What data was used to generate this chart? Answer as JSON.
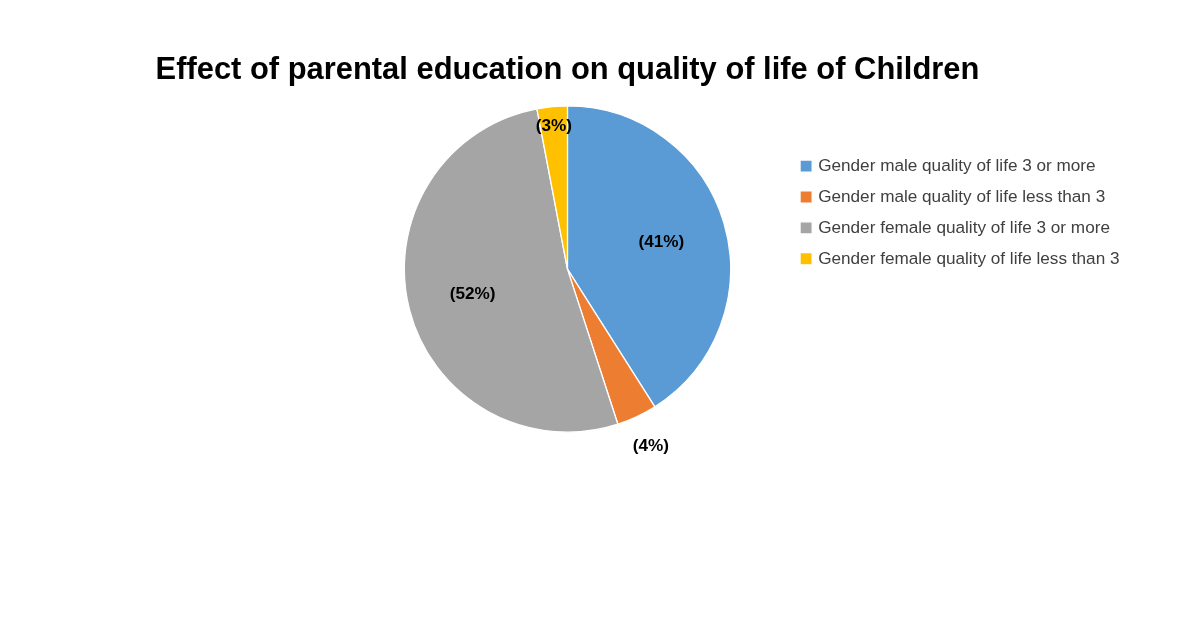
{
  "chart_data": {
    "type": "pie",
    "title": "Effect of parental education on quality of life of Children",
    "categories": [
      "Gender male quality of life 3 or more",
      "Gender male quality of life less than 3",
      "Gender female quality of life 3 or more",
      "Gender female quality of life less than 3"
    ],
    "values": [
      41,
      4,
      52,
      3
    ],
    "colors": [
      "#5b9bd5",
      "#ed7d31",
      "#a5a5a5",
      "#ffc000"
    ],
    "value_labels": [
      "(41%)",
      "(4%)",
      "(52%)",
      "(3%)"
    ],
    "legend": "right"
  }
}
